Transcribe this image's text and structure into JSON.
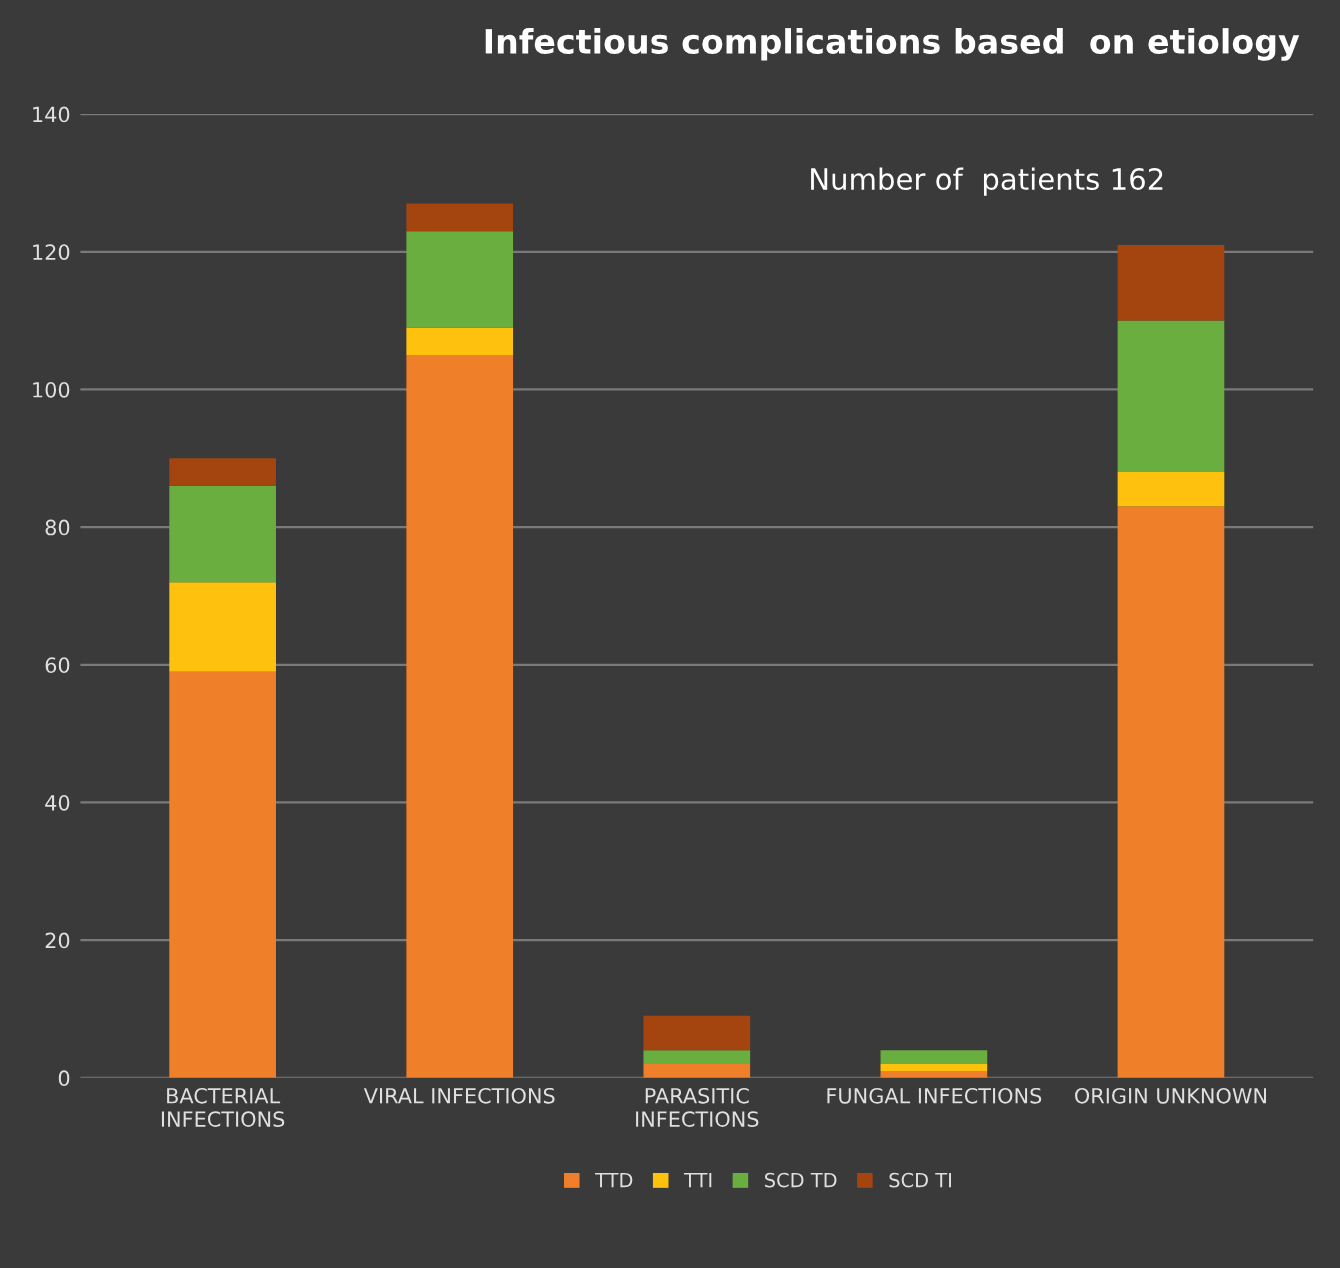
{
  "chart_data": {
    "type": "bar",
    "title": "Infectious complications based  on etiology",
    "stacked": true,
    "categories": [
      "BACTERIAL\nINFECTIONS",
      "VIRAL INFECTIONS",
      "PARASITIC\nINFECTIONS",
      "FUNGAL INFECTIONS",
      "ORIGIN UNKNOWN"
    ],
    "series": [
      {
        "name": "TTD",
        "color": "#f07f2a",
        "values": [
          59,
          105,
          2,
          1,
          83
        ]
      },
      {
        "name": "TTI",
        "color": "#fec20e",
        "values": [
          13,
          4,
          0,
          1,
          5
        ]
      },
      {
        "name": "SCD TD",
        "color": "#6aae3f",
        "values": [
          14,
          14,
          2,
          2,
          22
        ]
      },
      {
        "name": "SCD TI",
        "color": "#a4440f",
        "values": [
          4,
          4,
          5,
          0,
          11
        ]
      }
    ],
    "annotations": [
      "Number of  patients 162"
    ],
    "ylim": [
      0,
      140
    ],
    "yticks": [
      0,
      20,
      40,
      60,
      80,
      100,
      120,
      140
    ],
    "grid": "y",
    "legend": "bottom"
  }
}
